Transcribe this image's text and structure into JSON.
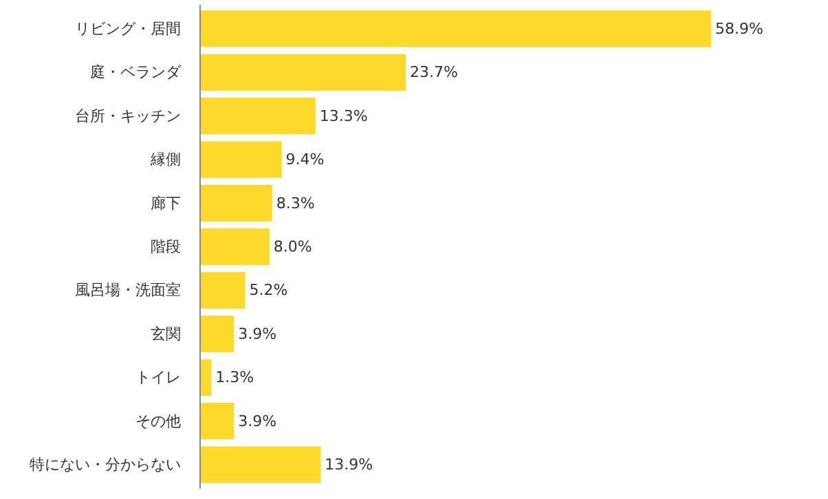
{
  "chart_data": {
    "type": "bar",
    "orientation": "horizontal",
    "categories": [
      "リビング・居間",
      "庭・ベランダ",
      "台所・キッチン",
      "縁側",
      "廊下",
      "階段",
      "風呂場・洗面室",
      "玄関",
      "トイレ",
      "その他",
      "特にない・分からない"
    ],
    "values": [
      58.9,
      23.7,
      13.3,
      9.4,
      8.3,
      8.0,
      5.2,
      3.9,
      1.3,
      3.9,
      13.9
    ],
    "value_labels": [
      "58.9%",
      "23.7%",
      "13.3%",
      "9.4%",
      "8.3%",
      "8.0%",
      "5.2%",
      "3.9%",
      "1.3%",
      "3.9%",
      "13.9%"
    ],
    "color": "#fdd92b",
    "grid": false
  }
}
